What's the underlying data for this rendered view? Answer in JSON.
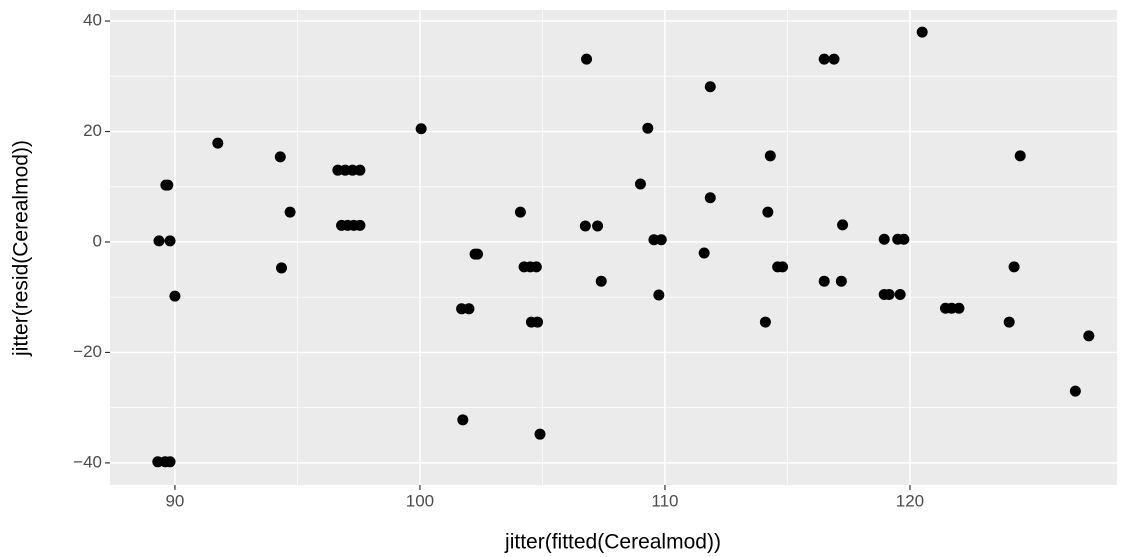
{
  "chart_data": {
    "type": "scatter",
    "x_label": "jitter(fitted(Cerealmod))",
    "y_label": "jitter(resid(Cerealmod))",
    "color": "#000000",
    "grid": true,
    "xlim": [
      87.35,
      128.45
    ],
    "ylim": [
      -44,
      42
    ],
    "xticks": [
      90,
      100,
      110,
      120
    ],
    "yticks": [
      {
        "value": -40,
        "label": "−40"
      },
      {
        "value": -20,
        "label": "−20"
      },
      0,
      20,
      40
    ],
    "x": [
      89.35,
      89.63,
      89.71,
      89.8,
      90.0,
      89.3,
      89.6,
      89.8,
      91.75,
      94.3,
      94.35,
      94.7,
      96.65,
      96.95,
      97.25,
      97.55,
      96.8,
      97.05,
      97.3,
      97.55,
      100.05,
      101.7,
      102.0,
      101.75,
      102.25,
      102.35,
      104.1,
      104.25,
      104.5,
      104.75,
      104.55,
      104.8,
      104.9,
      106.75,
      107.25,
      106.8,
      107.4,
      109.0,
      109.3,
      109.55,
      109.85,
      109.75,
      111.6,
      111.85,
      111.85,
      114.1,
      114.3,
      114.2,
      114.6,
      114.8,
      116.5,
      116.9,
      116.5,
      117.25,
      117.2,
      118.95,
      119.5,
      119.75,
      118.95,
      119.15,
      119.6,
      120.5,
      121.45,
      121.7,
      122.0,
      124.05,
      124.25,
      124.5,
      126.75,
      127.3
    ],
    "values": [
      0.2,
      10.3,
      10.3,
      0.2,
      -9.8,
      -39.8,
      -39.8,
      -39.8,
      17.9,
      15.4,
      -4.7,
      5.4,
      13.0,
      13.0,
      13.0,
      13.0,
      3.0,
      3.0,
      3.0,
      3.0,
      20.5,
      -12.1,
      -12.1,
      -32.2,
      -2.2,
      -2.2,
      5.4,
      -4.5,
      -4.5,
      -4.5,
      -14.5,
      -14.5,
      -34.8,
      2.9,
      2.9,
      33.1,
      -7.1,
      10.5,
      20.6,
      0.4,
      0.4,
      -9.6,
      -2.0,
      28.1,
      8.0,
      -14.5,
      15.6,
      5.4,
      -4.5,
      -4.5,
      33.1,
      33.1,
      -7.1,
      3.1,
      -7.1,
      0.5,
      0.5,
      0.5,
      -9.5,
      -9.5,
      -9.5,
      38.0,
      -12.0,
      -12.0,
      -12.0,
      -14.5,
      -4.5,
      15.6,
      -27.0,
      -17.0
    ]
  }
}
